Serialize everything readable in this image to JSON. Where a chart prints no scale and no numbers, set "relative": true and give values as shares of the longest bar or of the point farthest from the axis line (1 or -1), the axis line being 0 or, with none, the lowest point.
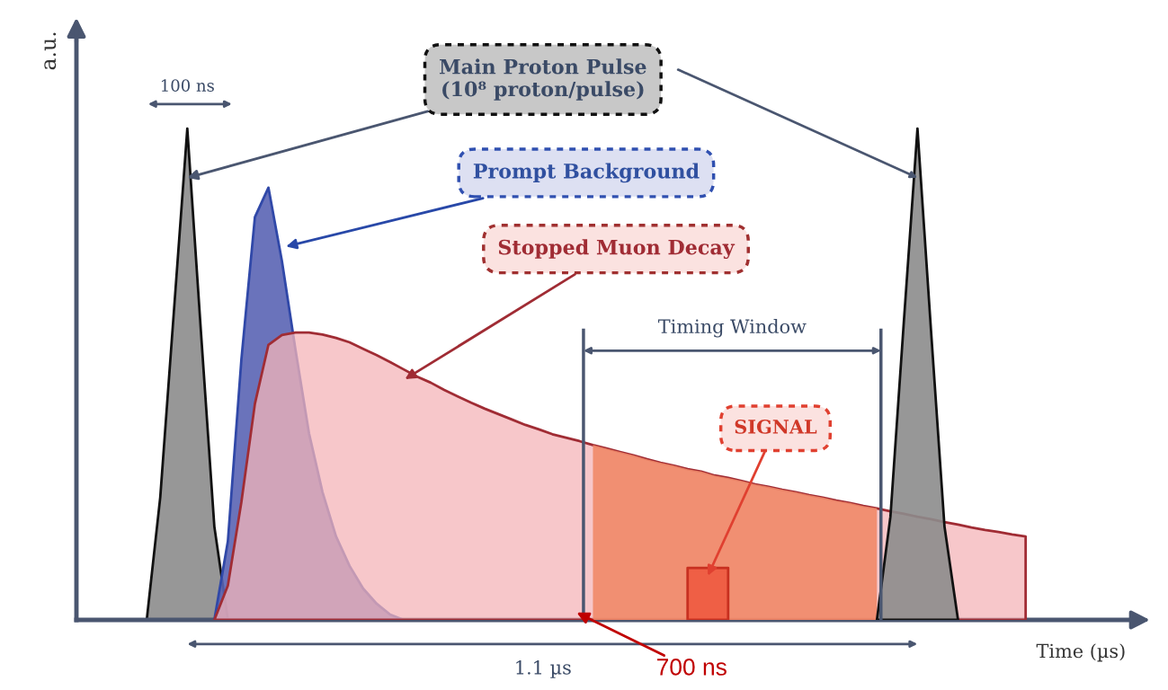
{
  "chart_data": {
    "type": "area",
    "relative": true,
    "ylabel": "a.u.",
    "xlabel": "Time (µs)",
    "categories": [
      null,
      null,
      null,
      null,
      null,
      null,
      null,
      null,
      null,
      null,
      null,
      null,
      null,
      null,
      null,
      null,
      null,
      null,
      null,
      null,
      null,
      null,
      null,
      null,
      null,
      null,
      null,
      null,
      null,
      null,
      null,
      null,
      null,
      null,
      null,
      null,
      null,
      null,
      null,
      null,
      null,
      null,
      null,
      null,
      null,
      null,
      null,
      null,
      null,
      null,
      null,
      null,
      null,
      null,
      null,
      null,
      null,
      null,
      null,
      null,
      null,
      null,
      null,
      null,
      null,
      null,
      null,
      null,
      null,
      null,
      null,
      null,
      null,
      null,
      null,
      null,
      null,
      null,
      null
    ],
    "series": [
      {
        "color": "#8c8c8c",
        "values": [
          null,
          null,
          null,
          null,
          null,
          0,
          0.25,
          0.625,
          1,
          0.59,
          0.19,
          0,
          null,
          null,
          null,
          null,
          null,
          null,
          null,
          null,
          null,
          null,
          null,
          null,
          null,
          null,
          null,
          null,
          null,
          null,
          null,
          null,
          null,
          null,
          null,
          null,
          null,
          null,
          null,
          null,
          null,
          null,
          null,
          null,
          null,
          null,
          null,
          null,
          null,
          null,
          null,
          null,
          null,
          null,
          null,
          null,
          null,
          null,
          null,
          null,
          null,
          null,
          null,
          null,
          null,
          null,
          null,
          null,
          null,
          null,
          null,
          null,
          null,
          null,
          null,
          null,
          null,
          null,
          null
        ]
      },
      {
        "color": "#5a64b4",
        "values": [
          null,
          null,
          null,
          null,
          null,
          null,
          null,
          null,
          null,
          null,
          0,
          0.16,
          0.53,
          0.82,
          0.88,
          0.73,
          0.55,
          0.38,
          0.26,
          0.17,
          0.11,
          0.064,
          0.033,
          0.011,
          0,
          null,
          null,
          null,
          null,
          null,
          null,
          null,
          null,
          null,
          null,
          null,
          null,
          null,
          null,
          null,
          null,
          null,
          null,
          null,
          null,
          null,
          null,
          null,
          null,
          null,
          null,
          null,
          null,
          null,
          null,
          null,
          null,
          null,
          null,
          null,
          null,
          null,
          null,
          null,
          null,
          null,
          null,
          null,
          null,
          null,
          null,
          null,
          null,
          null,
          null,
          null,
          null,
          null,
          null
        ]
      },
      {
        "color": "#f4b4b8",
        "values": [
          null,
          null,
          null,
          null,
          null,
          null,
          null,
          null,
          null,
          null,
          0,
          0.07,
          0.24,
          0.44,
          0.56,
          0.58,
          0.585,
          0.585,
          0.581,
          0.574,
          0.565,
          0.552,
          0.539,
          0.525,
          0.51,
          0.495,
          0.483,
          0.468,
          0.455,
          0.442,
          0.43,
          0.419,
          0.408,
          0.397,
          0.388,
          0.378,
          0.371,
          0.364,
          0.356,
          0.349,
          0.342,
          0.335,
          0.327,
          0.32,
          0.314,
          0.307,
          0.302,
          0.294,
          0.289,
          0.283,
          0.276,
          0.271,
          0.265,
          0.26,
          0.254,
          0.249,
          0.243,
          0.238,
          0.232,
          0.227,
          0.221,
          0.216,
          0.21,
          0.205,
          0.199,
          0.194,
          0.188,
          0.183,
          0.179,
          0.174,
          0.17,
          null,
          null,
          null,
          null,
          null,
          null,
          null,
          null
        ]
      },
      {
        "color": "#f08868",
        "values": [
          null,
          null,
          null,
          null,
          null,
          null,
          null,
          null,
          null,
          null,
          null,
          null,
          null,
          null,
          null,
          null,
          null,
          null,
          null,
          null,
          null,
          null,
          null,
          null,
          null,
          null,
          null,
          null,
          null,
          null,
          null,
          null,
          null,
          null,
          null,
          null,
          null,
          null,
          0.356,
          0.349,
          0.342,
          0.335,
          0.327,
          0.32,
          0.314,
          0.307,
          0.302,
          0.294,
          0.289,
          0.283,
          0.276,
          0.271,
          0.265,
          0.26,
          0.254,
          0.249,
          0.243,
          0.238,
          0.232,
          0.227,
          null,
          null,
          null,
          null,
          null,
          null,
          null,
          null,
          null,
          null,
          null,
          null,
          null,
          null,
          null,
          null,
          null,
          null,
          null
        ]
      },
      {
        "color": "#ee5a40",
        "values": [
          null,
          null,
          null,
          null,
          null,
          null,
          null,
          null,
          null,
          null,
          null,
          null,
          null,
          null,
          null,
          null,
          null,
          null,
          null,
          null,
          null,
          null,
          null,
          null,
          null,
          null,
          null,
          null,
          null,
          null,
          null,
          null,
          null,
          null,
          null,
          null,
          null,
          null,
          null,
          null,
          null,
          null,
          null,
          null,
          null,
          0.106,
          0.106,
          0.106,
          0.106,
          null,
          null,
          null,
          null,
          null,
          null,
          null,
          null,
          null,
          null,
          null,
          null,
          null,
          null,
          null,
          null,
          null,
          null,
          null,
          null,
          null,
          null,
          null,
          null,
          null,
          null,
          null,
          null,
          null,
          null
        ]
      },
      {
        "color": "#8c8c8c",
        "values": [
          null,
          null,
          null,
          null,
          null,
          null,
          null,
          null,
          null,
          null,
          null,
          null,
          null,
          null,
          null,
          null,
          null,
          null,
          null,
          null,
          null,
          null,
          null,
          null,
          null,
          null,
          null,
          null,
          null,
          null,
          null,
          null,
          null,
          null,
          null,
          null,
          null,
          null,
          null,
          null,
          null,
          null,
          null,
          null,
          null,
          null,
          null,
          null,
          null,
          null,
          null,
          null,
          null,
          null,
          null,
          null,
          null,
          null,
          null,
          0,
          0.21,
          0.61,
          1,
          0.59,
          0.19,
          0,
          null,
          null,
          null,
          null,
          null,
          null,
          null,
          null,
          null,
          null,
          null,
          null,
          null
        ]
      }
    ],
    "annotations": [
      "Main Proton Pulse\n(10⁸ proton/pulse)",
      "Prompt Background",
      "Stopped Muon Decay",
      "Timing Window",
      "SIGNAL",
      "100 ns",
      "1.1 µs",
      "700 ns"
    ]
  }
}
